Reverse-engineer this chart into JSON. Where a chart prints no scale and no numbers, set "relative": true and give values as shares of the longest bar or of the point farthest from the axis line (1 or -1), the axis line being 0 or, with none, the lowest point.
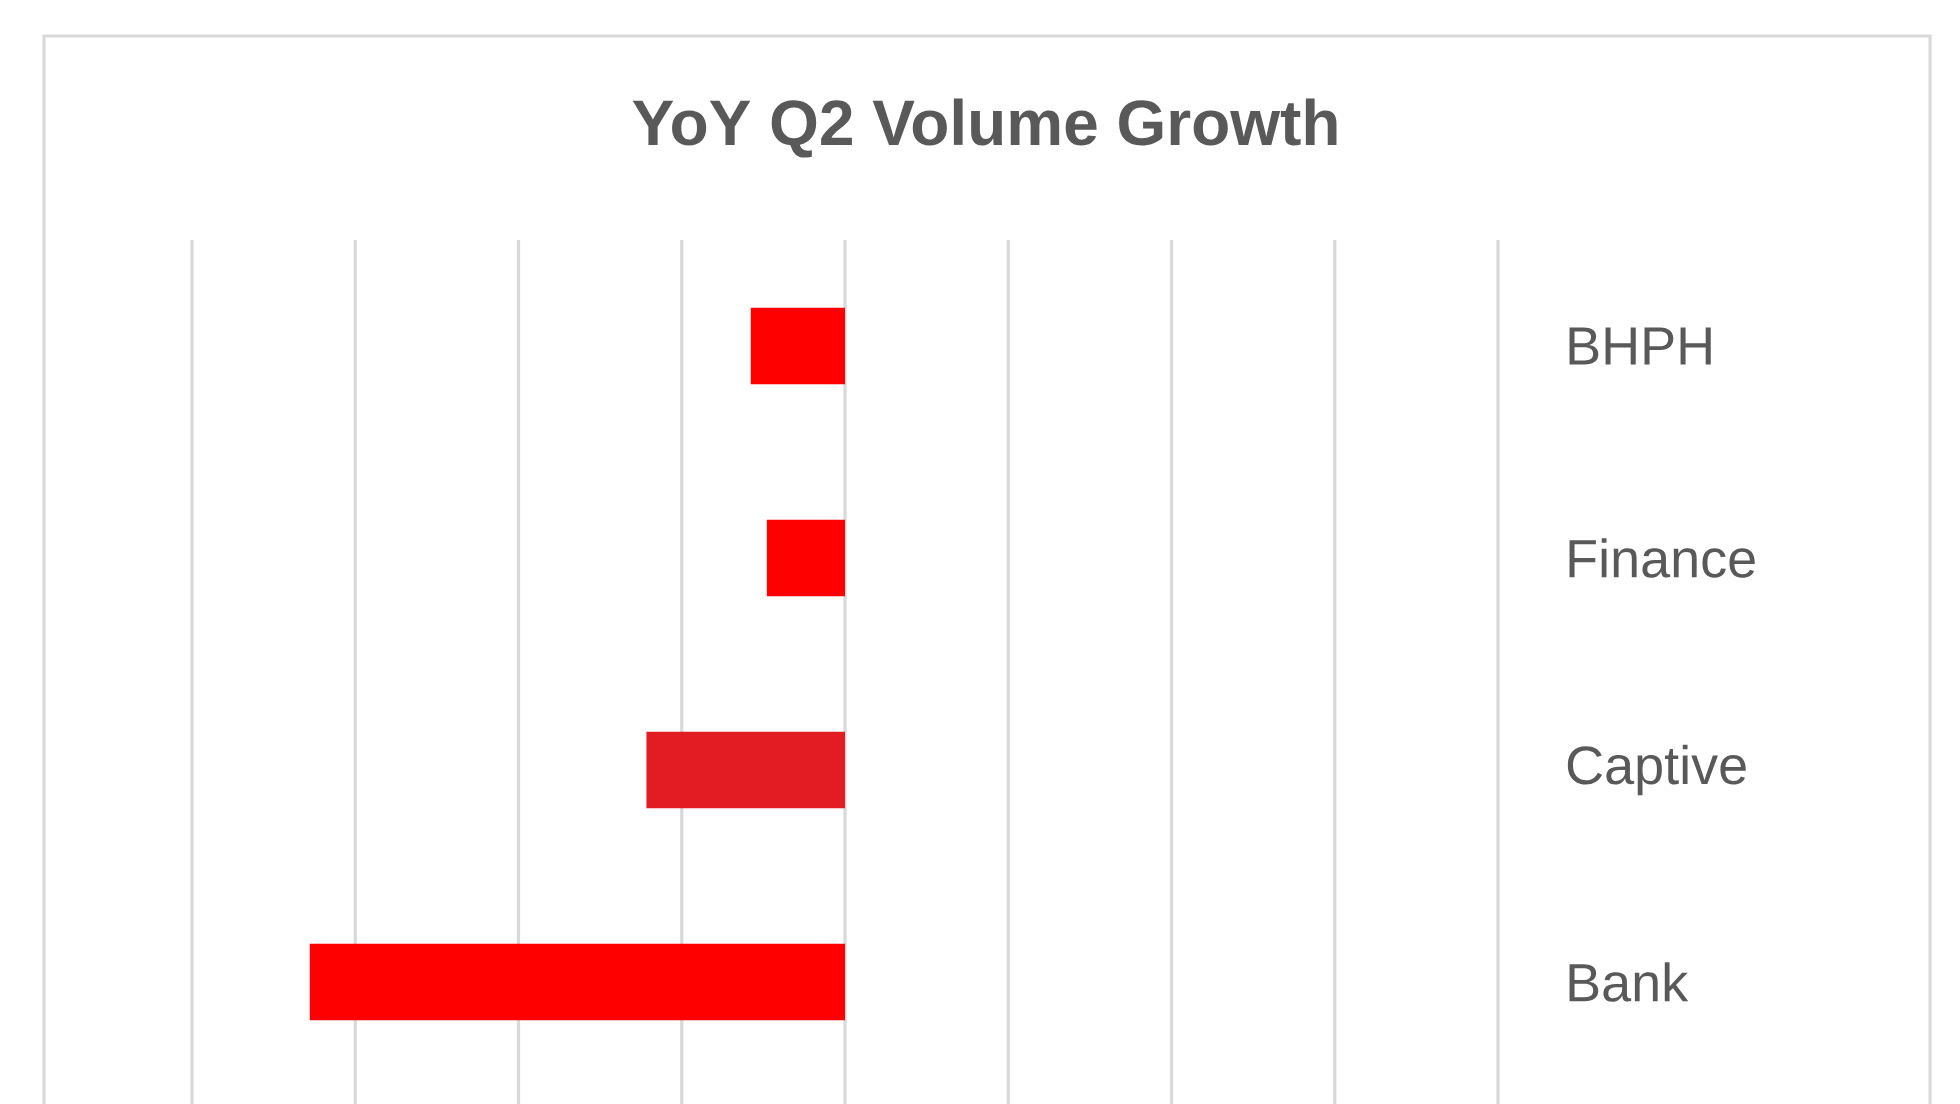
{
  "chart_data": {
    "type": "bar",
    "orientation": "horizontal",
    "relative": true,
    "title": "YoY Q2 Volume Growth",
    "categories": [
      "BHPH",
      "Finance",
      "Captive",
      "Bank"
    ],
    "values": [
      -0.176,
      -0.146,
      -0.371,
      -1
    ],
    "colors": [
      "#ff0000",
      "#ff0000",
      "#e31b23",
      "#ff0000"
    ],
    "grid": "x"
  }
}
